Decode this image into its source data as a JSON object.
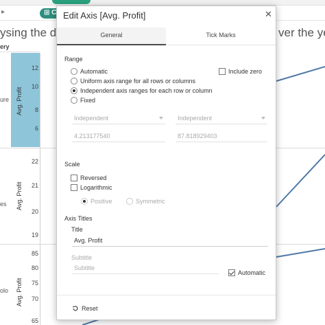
{
  "worksheet": {
    "title_left": "ysing the dis",
    "title_right": "ver the yea",
    "shelf_pill_label": "C",
    "category_header": "ery",
    "row_labels": [
      "ure",
      "es",
      "olo"
    ],
    "axis_title": "Avg. Profit",
    "panes": [
      {
        "ticks": [
          "12",
          "10",
          "8",
          "6"
        ]
      },
      {
        "ticks": [
          "22",
          "21",
          "20",
          "19"
        ]
      },
      {
        "ticks": [
          "85",
          "80",
          "75",
          "70",
          "65"
        ]
      }
    ],
    "line_color": "#4e79a7",
    "highlight_color": "#8ec5d9"
  },
  "dialog": {
    "title": "Edit Axis [Avg. Profit]",
    "close_icon": "close-icon",
    "tabs": [
      "General",
      "Tick Marks"
    ],
    "active_tab": "General",
    "range": {
      "heading": "Range",
      "options": [
        {
          "label": "Automatic",
          "selected": false
        },
        {
          "label": "Uniform axis range for all rows or columns",
          "selected": false
        },
        {
          "label": "Independent axis ranges for each row or column",
          "selected": true
        },
        {
          "label": "Fixed",
          "selected": false
        }
      ],
      "include_zero_label": "Include zero",
      "include_zero_checked": false,
      "start_mode": "Independent",
      "end_mode": "Independent",
      "start_value": "4.213177540",
      "end_value": "87.818929403"
    },
    "scale": {
      "heading": "Scale",
      "reversed_label": "Reversed",
      "reversed_checked": false,
      "logarithmic_label": "Logarithmic",
      "logarithmic_checked": false,
      "positive_label": "Positive",
      "symmetric_label": "Symmetric"
    },
    "axis_titles": {
      "heading": "Axis Titles",
      "title_label": "Title",
      "title_value": "Avg. Profit",
      "subtitle_label": "Subtitle",
      "subtitle_placeholder": "Subtitle",
      "automatic_label": "Automatic",
      "automatic_checked": true
    },
    "reset_label": "Reset"
  }
}
